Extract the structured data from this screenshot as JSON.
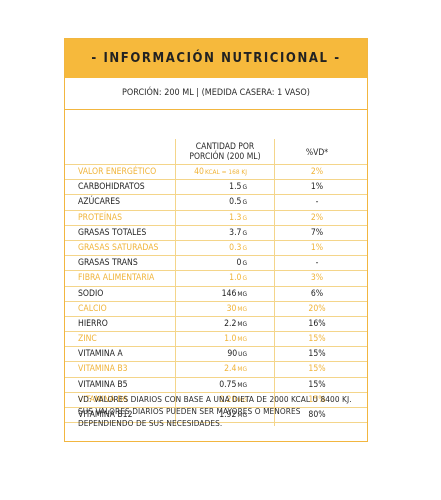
{
  "label": {
    "title": "- INFORMACIÓN NUTRICIONAL -",
    "portion": "PORCIÓN: 200 ML | (MEDIDA CASERA: 1 VASO)",
    "col_amount_line1": "CANTIDAD POR",
    "col_amount_line2": "PORCIÓN (200 ML)",
    "col_vd": "%VD*",
    "rows": [
      {
        "name": "VALOR ENERGÉTICO",
        "amount": "40",
        "unit": "KCAL = 168 KJ",
        "vd": "2%",
        "highlight": true
      },
      {
        "name": "CARBOHIDRATOS",
        "amount": "1.5",
        "unit": "G",
        "vd": "1%",
        "highlight": false
      },
      {
        "name": "AZÚCARES",
        "amount": "0.5",
        "unit": "G",
        "vd": "-",
        "highlight": false
      },
      {
        "name": "PROTEÍNAS",
        "amount": "1.3",
        "unit": "G",
        "vd": "2%",
        "highlight": true
      },
      {
        "name": "GRASAS TOTALES",
        "amount": "3.7",
        "unit": "G",
        "vd": "7%",
        "highlight": false
      },
      {
        "name": "GRASAS SATURADAS",
        "amount": "0.3",
        "unit": "G",
        "vd": "1%",
        "highlight": true
      },
      {
        "name": "GRASAS TRANS",
        "amount": "0",
        "unit": "G",
        "vd": "-",
        "highlight": false
      },
      {
        "name": "FIBRA ALIMENTARIA",
        "amount": "1.0",
        "unit": "G",
        "vd": "3%",
        "highlight": true
      },
      {
        "name": "SODIO",
        "amount": "146",
        "unit": "MG",
        "vd": "6%",
        "highlight": false
      },
      {
        "name": "CALCIO",
        "amount": "30",
        "unit": "MG",
        "vd": "20%",
        "highlight": true
      },
      {
        "name": "HIERRO",
        "amount": "2.2",
        "unit": "MG",
        "vd": "16%",
        "highlight": false
      },
      {
        "name": "ZINC",
        "amount": "1.0",
        "unit": "MG",
        "vd": "15%",
        "highlight": true
      },
      {
        "name": "VITAMINA A",
        "amount": "90",
        "unit": "UG",
        "vd": "15%",
        "highlight": false
      },
      {
        "name": "VITAMINA B3",
        "amount": "2.4",
        "unit": "MG",
        "vd": "15%",
        "highlight": true
      },
      {
        "name": "VITAMINA B5",
        "amount": "0.75",
        "unit": "MG",
        "vd": "15%",
        "highlight": false
      },
      {
        "name": "VITAMINA B6",
        "amount": "0.20",
        "unit": "MG",
        "vd": "15%",
        "highlight": true
      },
      {
        "name": "VITAMINA B12",
        "amount": "1.92",
        "unit": "MG",
        "vd": "80%",
        "highlight": false
      }
    ],
    "footnote": "VD: VALORES DIARIOS CON BASE A UNA DIETA DE 2000 KCAL U 8400 KJ. SUS VALORES DIARIOS PUEDEN SER MAYORES O MENORES DEPENDIENDO DE SUS NECESIDADES.",
    "colors": {
      "accent": "#f6b93c",
      "highlight_text": "#f0b43a",
      "text": "#1f1f1f"
    }
  }
}
